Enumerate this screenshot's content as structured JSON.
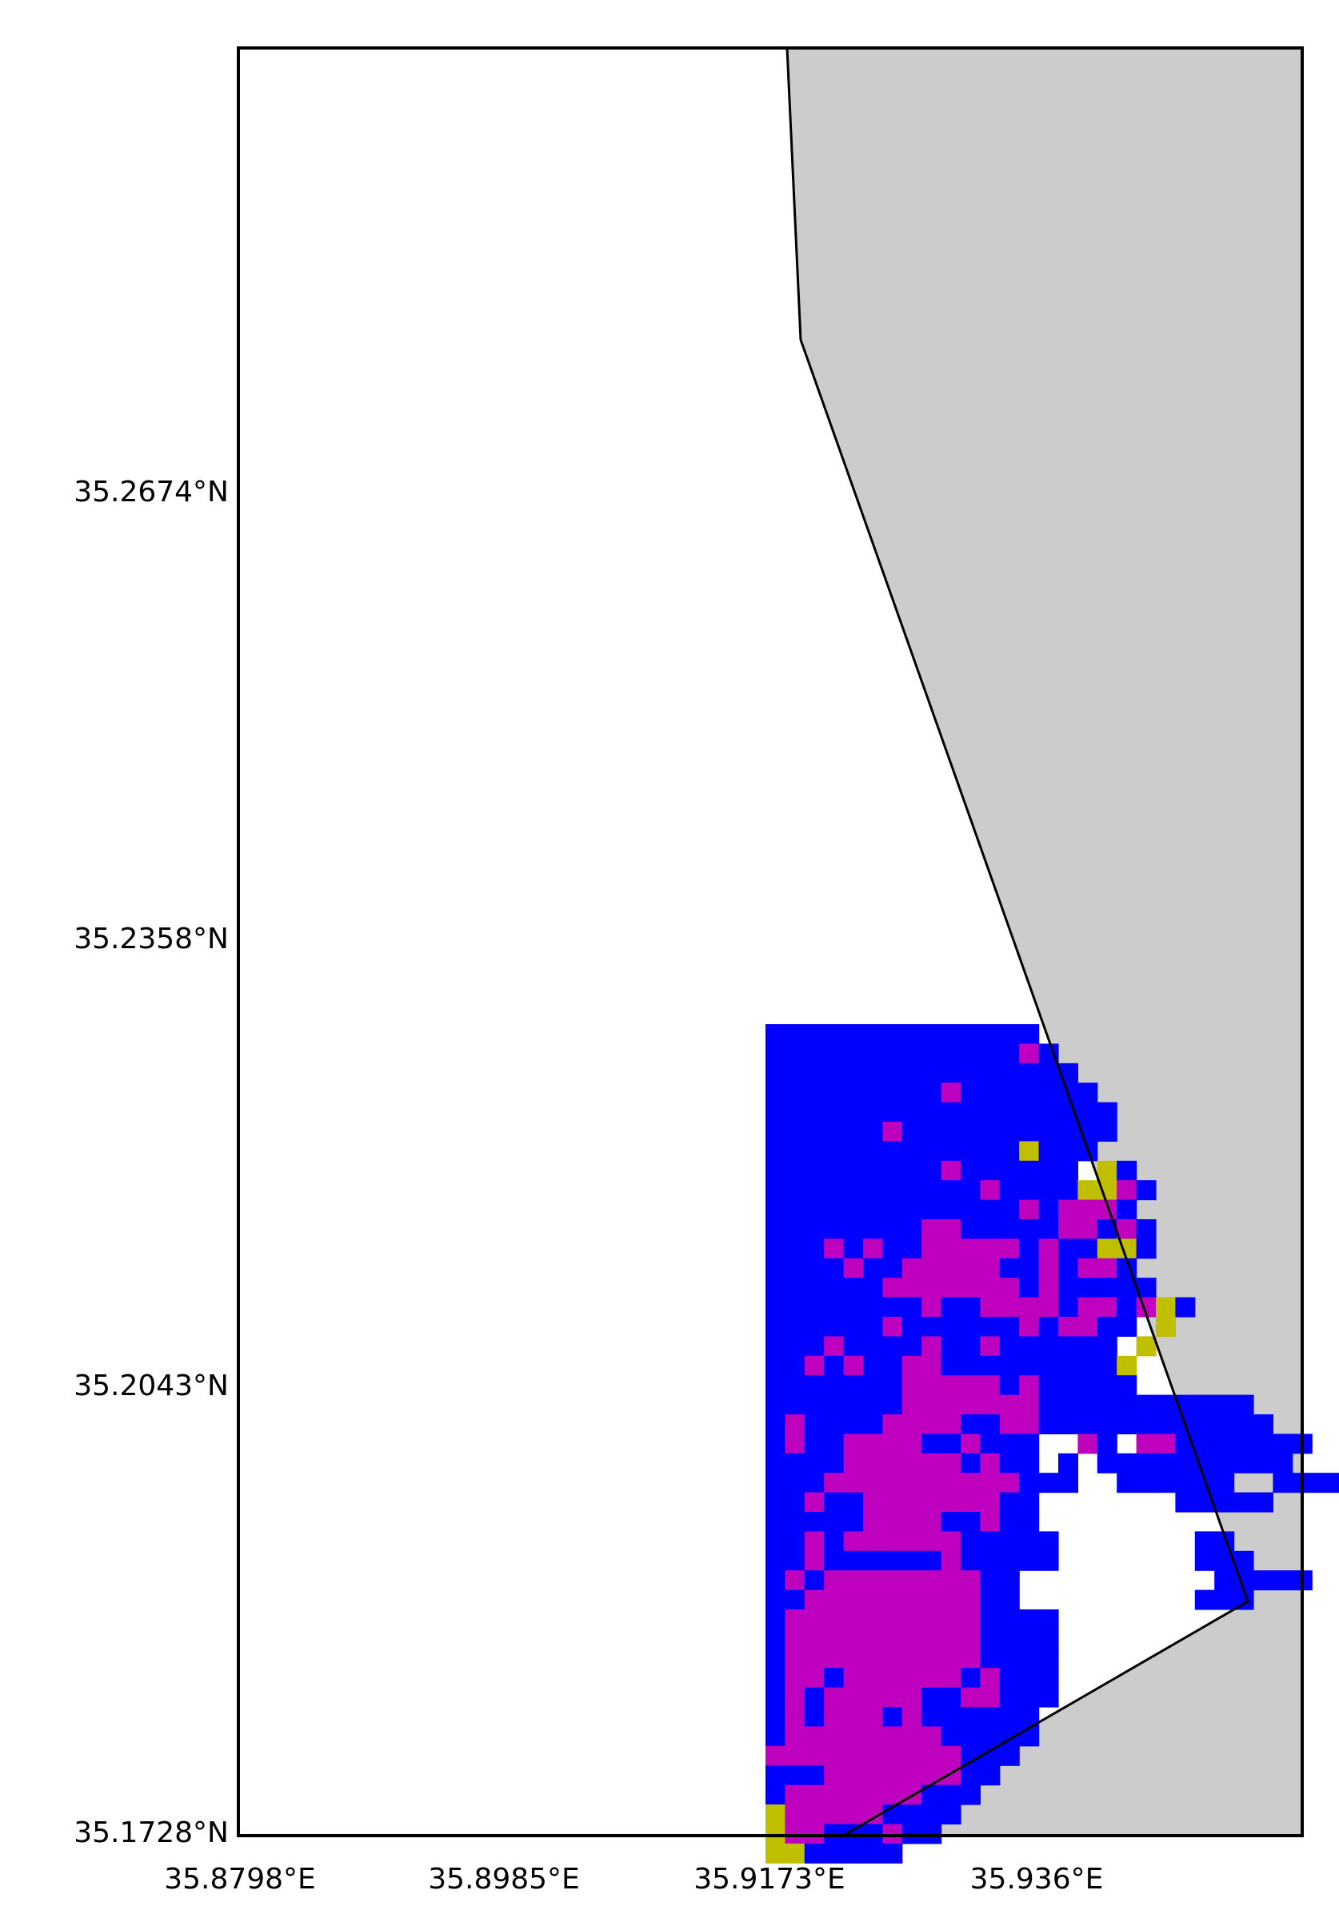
{
  "axes": {
    "y_ticks": [
      "35.2674°N",
      "35.2358°N",
      "35.2043°N",
      "35.1728°N"
    ],
    "x_ticks": [
      "35.8798°E",
      "35.8985°E",
      "35.9173°E",
      "35.936°E"
    ]
  },
  "colors": {
    "land": "#cccccc",
    "sea": "#ffffff",
    "class_blue": "#0000ff",
    "class_magenta": "#bf00bf",
    "class_olive": "#bfbf00",
    "coastline": "#000000"
  },
  "raster": {
    "legend": {
      "B": "class_blue",
      "M": "class_magenta",
      "Y": "class_olive",
      ".": "no data"
    },
    "rows": [
      "BBBBBBBBBBBBBB",
      "BBBBBBBBBBBBBMB",
      "BBBBBBBBBBBBBBBB",
      "BBBBBBBBBMBBBBBBB",
      "BBBBBBBBBBBBBBBBBB",
      "BBBBBBMBBBBBBBBBBB",
      "BBBBBBBBBBBBBYBBB",
      "BBBBBBBBBMBBBBBB.YB",
      "BBBBBBBBBBBMBBBBYYMB",
      "BBBBBBBBBBBBBMBMMMB",
      "BBBBBBBBMMBBBBBMMBMB",
      "BBBMBMBBMMMMMBMBBYYB",
      "BBBBMBBMMMMMBBMBMMB",
      "BBBBBBMMMMMMMBMBBBBB",
      "BBBBBBBBMBBMMMMBMMBMYB",
      "BBBBBBMBBBBBBMBMMBB.Y",
      "BBBMBBBBMBBMBBBBBB.Y",
      "BBMBMBBMMBBBBBBBBBY.",
      "BBBBBBBMMMMMBMBBBBB...",
      "BBBBBBBMMMMMMMBBBBBBBBBBB.",
      "BMBBBBMMMMBBMMBBBBBBBBBBBB",
      "BMBBMMMMBBMBBB..MB.MMBBBBBBB",
      "BBBBMMMMMMBMBB.B.BBBBBBBBBB",
      "BBBMMMMMMMMMMBBB..BBBBBB..BBBB",
      "BBMBBMMMMMMMBB.......BBBBB....",
      "BBBBBMMMMBBMBB..................",
      "BBMBMMMMMMBBBBB.......BB........",
      "BBMBBBBBBMBBBBB.......BBB......",
      "BMBMMMMMMMMBB..........BBBBB...",
      "BBMMMMMMMMMBB.........BBB......",
      "BMMMMMMMMMMBBBB.........",
      "BMMMMMMMMMMBBBB.......",
      "BMMMMMMMMMMBBBB......",
      "BMMBMMMMMMBMBBB....",
      "BMBMMMMMBBMMBBB...",
      "BMBMMMBMBBBBBB.",
      "BMMMMMMMMBBBBB",
      "MMMMMMMMMMBBB",
      "BBBMMMMMMMBB",
      "BMMMMMMMBBB",
      "YMMMMMBBBB",
      "YMMBBBMBB",
      "YYBBBBB"
    ]
  }
}
